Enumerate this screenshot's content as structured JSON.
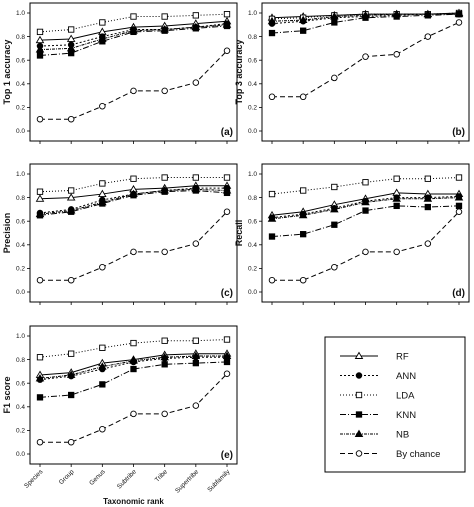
{
  "series_styles": [
    {
      "name": "RF",
      "marker": "triangle-open",
      "dash": "",
      "color": "#000000"
    },
    {
      "name": "ANN",
      "marker": "circle-filled",
      "dash": "2,2",
      "color": "#000000"
    },
    {
      "name": "LDA",
      "marker": "square-open",
      "dash": "1,2",
      "color": "#000000"
    },
    {
      "name": "KNN",
      "marker": "square-filled",
      "dash": "6,2,1,2",
      "color": "#000000"
    },
    {
      "name": "NB",
      "marker": "triangle-filled",
      "dash": "3,1,1,1",
      "color": "#000000"
    },
    {
      "name": "By chance",
      "marker": "circle-open",
      "dash": "5,3",
      "color": "#000000"
    }
  ],
  "legend": {
    "entries": [
      "RF",
      "ANN",
      "LDA",
      "KNN",
      "NB",
      "By chance"
    ]
  },
  "chart_data": [
    {
      "type": "line",
      "panel": "(a)",
      "ylabel": "Top 1 accuracy",
      "xlabel": "",
      "categories": [
        "Species",
        "Group",
        "Genus",
        "Subtribe",
        "Tribe",
        "Supertribe",
        "Subfamily"
      ],
      "ylim": [
        0,
        1
      ],
      "yticks": [
        "0.0",
        "0.2",
        "0.4",
        "0.6",
        "0.8",
        "1.0"
      ],
      "show_xticklabels": false,
      "series": [
        {
          "name": "RF",
          "values": [
            0.77,
            0.78,
            0.84,
            0.88,
            0.89,
            0.91,
            0.93
          ]
        },
        {
          "name": "ANN",
          "values": [
            0.72,
            0.73,
            0.8,
            0.86,
            0.86,
            0.88,
            0.91
          ]
        },
        {
          "name": "LDA",
          "values": [
            0.84,
            0.86,
            0.92,
            0.97,
            0.97,
            0.98,
            0.99
          ]
        },
        {
          "name": "KNN",
          "values": [
            0.64,
            0.66,
            0.76,
            0.84,
            0.85,
            0.87,
            0.89
          ]
        },
        {
          "name": "NB",
          "values": [
            0.69,
            0.7,
            0.78,
            0.85,
            0.86,
            0.88,
            0.9
          ]
        },
        {
          "name": "By chance",
          "values": [
            0.1,
            0.1,
            0.21,
            0.34,
            0.34,
            0.41,
            0.68
          ]
        }
      ]
    },
    {
      "type": "line",
      "panel": "(b)",
      "ylabel": "Top 3 accuracy",
      "xlabel": "",
      "categories": [
        "Species",
        "Group",
        "Genus",
        "Subtribe",
        "Tribe",
        "Supertribe",
        "Subfamily"
      ],
      "ylim": [
        0,
        1
      ],
      "yticks": [
        "0.0",
        "0.2",
        "0.4",
        "0.6",
        "0.8",
        "1.0"
      ],
      "show_xticklabels": false,
      "series": [
        {
          "name": "RF",
          "values": [
            0.96,
            0.97,
            0.98,
            0.99,
            0.99,
            0.99,
            1.0
          ]
        },
        {
          "name": "ANN",
          "values": [
            0.91,
            0.93,
            0.96,
            0.97,
            0.98,
            0.99,
            0.99
          ]
        },
        {
          "name": "LDA",
          "values": [
            0.95,
            0.96,
            0.98,
            0.99,
            0.99,
            0.99,
            1.0
          ]
        },
        {
          "name": "KNN",
          "values": [
            0.83,
            0.85,
            0.92,
            0.96,
            0.97,
            0.98,
            0.99
          ]
        },
        {
          "name": "NB",
          "values": [
            0.93,
            0.94,
            0.97,
            0.98,
            0.99,
            0.99,
            0.99
          ]
        },
        {
          "name": "By chance",
          "values": [
            0.29,
            0.29,
            0.45,
            0.63,
            0.65,
            0.8,
            0.92
          ]
        }
      ]
    },
    {
      "type": "line",
      "panel": "(c)",
      "ylabel": "Precision",
      "xlabel": "",
      "categories": [
        "Species",
        "Group",
        "Genus",
        "Subtribe",
        "Tribe",
        "Supertribe",
        "Subfamily"
      ],
      "ylim": [
        0,
        1
      ],
      "yticks": [
        "0.0",
        "0.2",
        "0.4",
        "0.6",
        "0.8",
        "1.0"
      ],
      "show_xticklabels": false,
      "series": [
        {
          "name": "RF",
          "values": [
            0.79,
            0.8,
            0.83,
            0.87,
            0.88,
            0.9,
            0.9
          ]
        },
        {
          "name": "ANN",
          "values": [
            0.67,
            0.7,
            0.78,
            0.83,
            0.86,
            0.88,
            0.88
          ]
        },
        {
          "name": "LDA",
          "values": [
            0.85,
            0.86,
            0.92,
            0.96,
            0.97,
            0.97,
            0.97
          ]
        },
        {
          "name": "KNN",
          "values": [
            0.65,
            0.68,
            0.75,
            0.82,
            0.85,
            0.86,
            0.84
          ]
        },
        {
          "name": "NB",
          "values": [
            0.66,
            0.69,
            0.76,
            0.83,
            0.86,
            0.87,
            0.86
          ]
        },
        {
          "name": "By chance",
          "values": [
            0.1,
            0.1,
            0.21,
            0.34,
            0.34,
            0.41,
            0.68
          ]
        }
      ]
    },
    {
      "type": "line",
      "panel": "(d)",
      "ylabel": "Recall",
      "xlabel": "",
      "categories": [
        "Species",
        "Group",
        "Genus",
        "Subtribe",
        "Tribe",
        "Supertribe",
        "Subfamily"
      ],
      "ylim": [
        0,
        1
      ],
      "yticks": [
        "0.0",
        "0.2",
        "0.4",
        "0.6",
        "0.8",
        "1.0"
      ],
      "show_xticklabels": false,
      "series": [
        {
          "name": "RF",
          "values": [
            0.65,
            0.68,
            0.74,
            0.79,
            0.84,
            0.83,
            0.83
          ]
        },
        {
          "name": "ANN",
          "values": [
            0.63,
            0.66,
            0.71,
            0.77,
            0.8,
            0.8,
            0.81
          ]
        },
        {
          "name": "LDA",
          "values": [
            0.83,
            0.86,
            0.89,
            0.93,
            0.96,
            0.96,
            0.97
          ]
        },
        {
          "name": "KNN",
          "values": [
            0.47,
            0.49,
            0.57,
            0.69,
            0.73,
            0.72,
            0.73
          ]
        },
        {
          "name": "NB",
          "values": [
            0.62,
            0.65,
            0.7,
            0.76,
            0.79,
            0.79,
            0.8
          ]
        },
        {
          "name": "By chance",
          "values": [
            0.1,
            0.1,
            0.21,
            0.34,
            0.34,
            0.41,
            0.68
          ]
        }
      ]
    },
    {
      "type": "line",
      "panel": "(e)",
      "ylabel": "F1 score",
      "xlabel": "Taxonomic rank",
      "categories": [
        "Species",
        "Group",
        "Genus",
        "Subtribe",
        "Tribe",
        "Supertribe",
        "Subfamily"
      ],
      "ylim": [
        0,
        1
      ],
      "yticks": [
        "0.0",
        "0.2",
        "0.4",
        "0.6",
        "0.8",
        "1.0"
      ],
      "show_xticklabels": true,
      "series": [
        {
          "name": "RF",
          "values": [
            0.67,
            0.69,
            0.77,
            0.8,
            0.84,
            0.85,
            0.85
          ]
        },
        {
          "name": "ANN",
          "values": [
            0.63,
            0.66,
            0.72,
            0.78,
            0.81,
            0.82,
            0.82
          ]
        },
        {
          "name": "LDA",
          "values": [
            0.82,
            0.85,
            0.9,
            0.94,
            0.96,
            0.96,
            0.97
          ]
        },
        {
          "name": "KNN",
          "values": [
            0.48,
            0.5,
            0.59,
            0.72,
            0.76,
            0.77,
            0.78
          ]
        },
        {
          "name": "NB",
          "values": [
            0.64,
            0.67,
            0.74,
            0.79,
            0.82,
            0.83,
            0.83
          ]
        },
        {
          "name": "By chance",
          "values": [
            0.1,
            0.1,
            0.21,
            0.34,
            0.34,
            0.41,
            0.68
          ]
        }
      ]
    }
  ]
}
